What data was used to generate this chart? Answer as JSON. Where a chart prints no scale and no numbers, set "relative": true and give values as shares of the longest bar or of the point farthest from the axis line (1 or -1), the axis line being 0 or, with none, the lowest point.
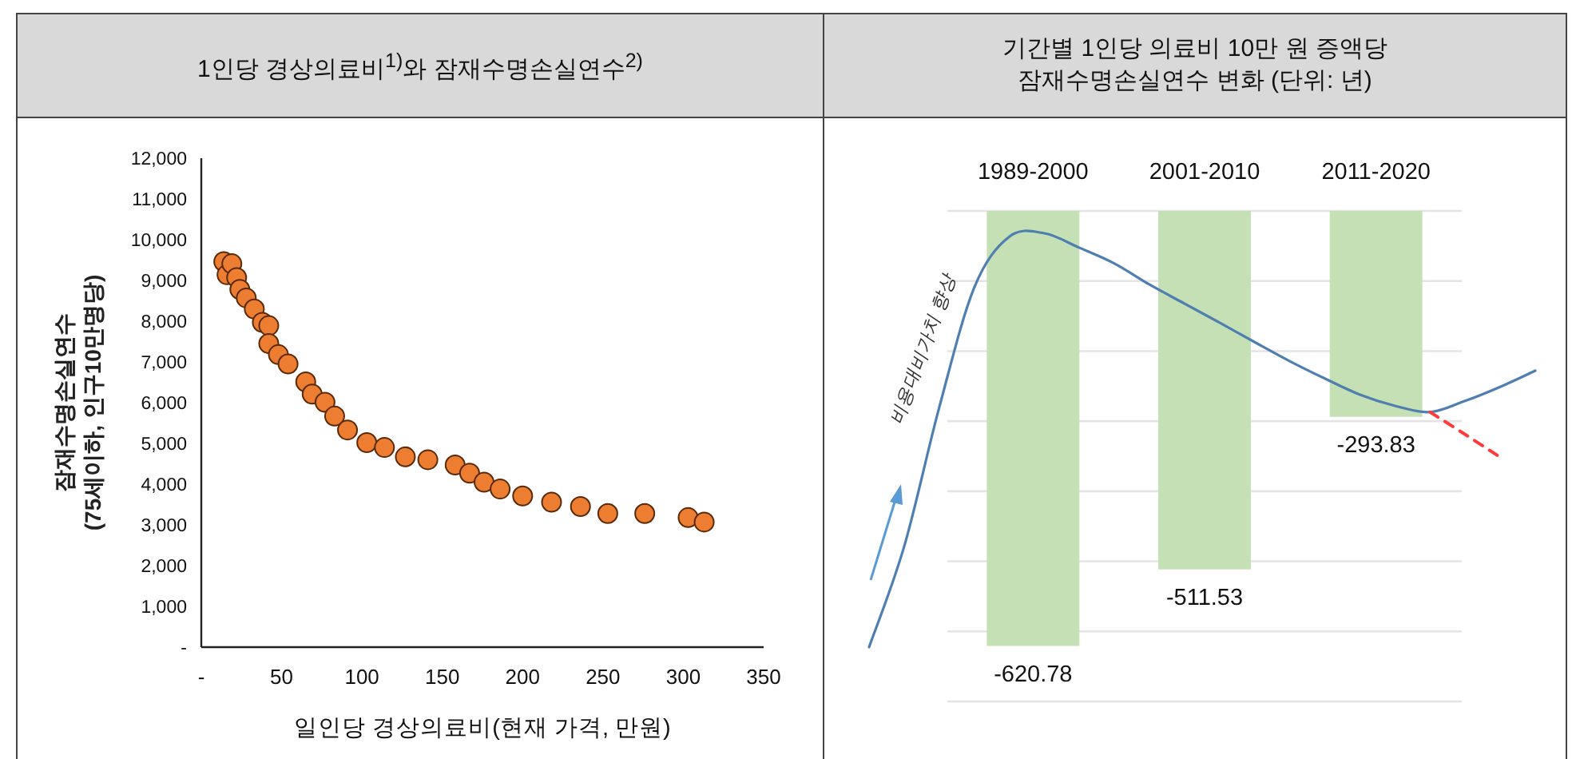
{
  "chart_data": [
    {
      "type": "scatter",
      "title": "1인당 경상의료비$^{1)}$와 잠재수명손실연수$^{2)}$",
      "xlabel": "일인당 경상의료비(현재 가격, 만원)",
      "ylabel": "잠재수명손실연수\n(75세이하, 인구10만명당)",
      "x": [
        14,
        16,
        19,
        22,
        24,
        28,
        33,
        38,
        42,
        42,
        48,
        54,
        65,
        69,
        77,
        83,
        91,
        103,
        114,
        127,
        141,
        158,
        167,
        176,
        186,
        200,
        218,
        236,
        253,
        276,
        303,
        313
      ],
      "values": [
        9460,
        9140,
        9410,
        9070,
        8780,
        8570,
        8300,
        7970,
        7890,
        7450,
        7180,
        6950,
        6510,
        6210,
        6010,
        5670,
        5330,
        5020,
        4900,
        4670,
        4600,
        4470,
        4270,
        4050,
        3880,
        3710,
        3560,
        3450,
        3280,
        3280,
        3180,
        3070
      ],
      "color": "#ed7d31",
      "marker": "circle",
      "xlim": [
        0,
        350
      ],
      "xticks": [
        {
          "value": 0,
          "label": "-"
        },
        50,
        100,
        150,
        200,
        250,
        300,
        350
      ],
      "ylim": [
        0,
        12000
      ],
      "yticks": [
        {
          "value": 0,
          "label": "-"
        },
        {
          "value": 1000,
          "label": "1,000"
        },
        {
          "value": 2000,
          "label": "2,000"
        },
        {
          "value": 3000,
          "label": "3,000"
        },
        {
          "value": 4000,
          "label": "4,000"
        },
        {
          "value": 5000,
          "label": "5,000"
        },
        {
          "value": 6000,
          "label": "6,000"
        },
        {
          "value": 7000,
          "label": "7,000"
        },
        {
          "value": 8000,
          "label": "8,000"
        },
        {
          "value": 9000,
          "label": "9,000"
        },
        {
          "value": 10000,
          "label": "10,000"
        },
        {
          "value": 11000,
          "label": "11,000"
        },
        {
          "value": 12000,
          "label": "12,000"
        }
      ]
    },
    {
      "type": "bar",
      "title": "기간별 1인당 의료비 10만 원 증액당\n잠재수명손실연수 변화 (단위: 년)",
      "categories": [
        "1989-2000",
        "2001-2010",
        "2011-2020"
      ],
      "values": [
        -620.78,
        -511.53,
        -293.83
      ],
      "color": "#c5e0b4",
      "data_labels": true,
      "ylim": [
        -700,
        0
      ],
      "yticks": [
        {
          "value": 0,
          "label": null
        },
        {
          "value": -100,
          "label": null
        },
        {
          "value": -200,
          "label": null
        },
        {
          "value": -300,
          "label": null
        },
        {
          "value": -400,
          "label": null
        },
        {
          "value": -500,
          "label": null
        },
        {
          "value": -600,
          "label": null
        },
        {
          "value": -700,
          "label": null
        }
      ],
      "grid": "y",
      "tick_labels": "x"
    },
    {
      "type": "line",
      "relative": true,
      "categories": [
        null,
        null,
        null,
        null,
        null,
        null,
        null,
        null,
        null,
        null,
        null,
        null,
        null,
        null,
        null,
        null,
        null,
        null,
        null,
        null
      ],
      "series": [
        {
          "color": "#4f7fb0",
          "line_style": "solid",
          "values": [
            0,
            0.243,
            0.579,
            0.869,
            0.992,
            1,
            0.965,
            0.927,
            0.876,
            0.83,
            0.784,
            0.737,
            0.691,
            0.649,
            0.61,
            0.583,
            0.568,
            0.595,
            0.629,
            0.668
          ]
        },
        {
          "color": "#ff3b3b",
          "line_style": "dashed",
          "values": [
            null,
            null,
            null,
            null,
            null,
            null,
            null,
            null,
            null,
            null,
            null,
            null,
            null,
            null,
            null,
            null,
            0.568,
            0.514,
            0.459,
            null
          ]
        }
      ],
      "marker": "none",
      "annotations": [
        "비용대비가치 향상"
      ]
    }
  ]
}
